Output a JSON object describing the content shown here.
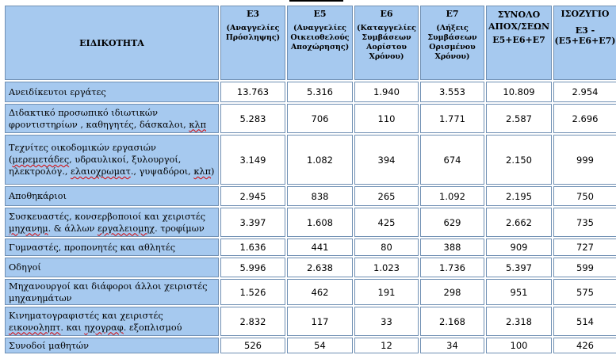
{
  "header": {
    "specialty": "ΕΙΔΙΚΟΤΗΤΑ",
    "columns": [
      {
        "code": "E3",
        "sub": "(Αναγγελίες Πρόσληψης)"
      },
      {
        "code": "E5",
        "sub": "(Αναγγελίες Οικειοθελούς Αποχώρησης)"
      },
      {
        "code": "E6",
        "sub": "(Καταγγελίες Συμβάσεων Αορίστου Χρόνου)"
      },
      {
        "code": "E7",
        "sub": "(Λήξεις Συμβάσεων Ορισμένου Χρόνου)"
      },
      {
        "code": "ΣΥΝΟΛΟ ΑΠΟΧ/ΣΕΩΝ",
        "sub": "E5+E6+E7"
      },
      {
        "code": "ΙΣΟΖΥΓΙΟ",
        "sub": "Ε3 - (Ε5+Ε6+Ε7)"
      }
    ]
  },
  "rows": [
    {
      "name_parts": [
        "Ανειδίκευτοι εργάτες"
      ],
      "values": [
        "13.763",
        "5.316",
        "1.940",
        "3.553",
        "10.809",
        "2.954"
      ]
    },
    {
      "name_parts": [
        "Διδακτικό προσωπικό ιδιωτικών φροντιστηρίων , καθηγητές, δάσκαλοι, ",
        "κλπ"
      ],
      "values": [
        "5.283",
        "706",
        "110",
        "1.771",
        "2.587",
        "2.696"
      ]
    },
    {
      "name_parts": [
        "Τεχνίτες οικοδομικών εργασιών (",
        "μερεμετάδες",
        ", υδραυλικοί, ξυλουργοί, ηλεκτρολόγ., ",
        "ελαιοχρωματ",
        "., γυψαδόροι, ",
        "κλπ",
        ")"
      ],
      "values": [
        "3.149",
        "1.082",
        "394",
        "674",
        "2.150",
        "999"
      ]
    },
    {
      "name_parts": [
        "Αποθηκάριοι"
      ],
      "values": [
        "2.945",
        "838",
        "265",
        "1.092",
        "2.195",
        "750"
      ]
    },
    {
      "name_parts": [
        "Συσκευαστές, κονσερβοποιοί και χειριστές ",
        "μηχανημ",
        ".  & άλλων ",
        "εργαλειομηχ",
        ". τροφίμων"
      ],
      "values": [
        "3.397",
        "1.608",
        "425",
        "629",
        "2.662",
        "735"
      ]
    },
    {
      "name_parts": [
        "Γυμναστές, προπονητές και αθλητές"
      ],
      "values": [
        "1.636",
        "441",
        "80",
        "388",
        "909",
        "727"
      ]
    },
    {
      "name_parts": [
        "Οδηγοί"
      ],
      "values": [
        "5.996",
        "2.638",
        "1.023",
        "1.736",
        "5.397",
        "599"
      ]
    },
    {
      "name_parts": [
        "Μηχανουργοί και διάφοροι άλλοι χειριστές μηχανημάτων"
      ],
      "values": [
        "1.526",
        "462",
        "191",
        "298",
        "951",
        "575"
      ]
    },
    {
      "name_parts": [
        "Κινηματογραφιστές και χειριστές ",
        "εικονοληπτ",
        ".  και  ",
        "ηχογραφ",
        ".  εξοπλισμού"
      ],
      "values": [
        "2.832",
        "117",
        "33",
        "2.168",
        "2.318",
        "514"
      ]
    },
    {
      "name_parts": [
        "Συνοδοί μαθητών"
      ],
      "values": [
        "526",
        "54",
        "12",
        "34",
        "100",
        "426"
      ]
    }
  ]
}
